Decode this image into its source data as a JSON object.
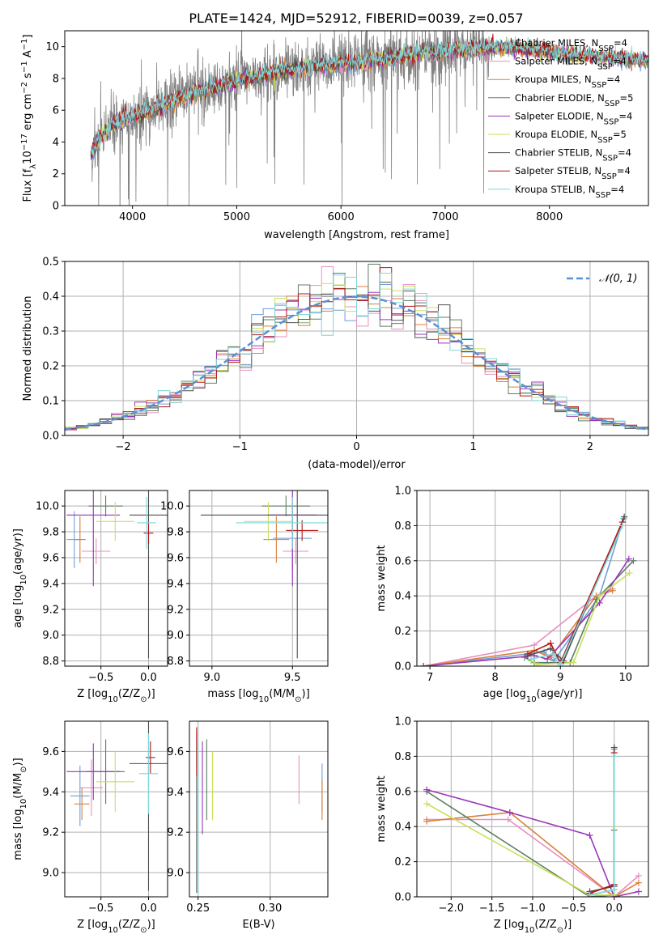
{
  "figure": {
    "title": "PLATE=1424, MJD=52912, FIBERID=0039, z=0.057"
  },
  "colors": {
    "Chabrier MILES": "#6f9fd8",
    "Salpeter MILES": "#e88fc2",
    "Kroupa MILES": "#d8813a",
    "Chabrier ELODIE": "#5f7f62",
    "Salpeter ELODIE": "#9b36b7",
    "Kroupa ELODIE": "#c8e05a",
    "Chabrier STELIB": "#505050",
    "Salpeter STELIB": "#b01818",
    "Kroupa STELIB": "#7fd6d9",
    "data": "#808080",
    "normal": "#5a8fd6"
  },
  "chart_data": [
    {
      "id": "spectrum",
      "type": "line",
      "title": "PLATE=1424, MJD=52912, FIBERID=0039, z=0.057",
      "xlabel": "wavelength [Angstrom, rest frame]",
      "ylabel_parts": [
        "Flux [f",
        "λ",
        "10",
        "−17",
        " erg cm",
        "−2",
        " s",
        "−1",
        " A",
        "−1",
        "]"
      ],
      "xlim": [
        3350,
        8950
      ],
      "ylim": [
        0,
        11
      ],
      "xticks": [
        4000,
        5000,
        6000,
        7000,
        8000
      ],
      "yticks": [
        0,
        2,
        4,
        6,
        8,
        10
      ],
      "continuum_knots": [
        [
          3600,
          3.2
        ],
        [
          3700,
          4.3
        ],
        [
          3800,
          5.0
        ],
        [
          3900,
          5.3
        ],
        [
          4000,
          5.6
        ],
        [
          4200,
          6.0
        ],
        [
          4400,
          6.6
        ],
        [
          4600,
          7.1
        ],
        [
          4800,
          7.4
        ],
        [
          5000,
          7.8
        ],
        [
          5200,
          8.2
        ],
        [
          5400,
          8.4
        ],
        [
          5600,
          8.6
        ],
        [
          5800,
          8.8
        ],
        [
          6000,
          8.9
        ],
        [
          6200,
          9.0
        ],
        [
          6400,
          9.2
        ],
        [
          6600,
          9.4
        ],
        [
          6800,
          9.6
        ],
        [
          7000,
          9.7
        ],
        [
          7200,
          9.8
        ],
        [
          7400,
          9.9
        ],
        [
          7600,
          9.9
        ],
        [
          7800,
          9.8
        ],
        [
          8000,
          9.7
        ],
        [
          8200,
          9.5
        ],
        [
          8400,
          9.4
        ],
        [
          8600,
          9.3
        ],
        [
          8800,
          9.2
        ],
        [
          8950,
          9.1
        ]
      ],
      "model_range": [
        3600,
        8950
      ],
      "data_range": [
        3600,
        7420
      ],
      "legend": [
        {
          "label": "Chabrier MILES, N",
          "sub": "SSP",
          "eq": "=4",
          "color_key": "Chabrier MILES"
        },
        {
          "label": "Salpeter MILES, N",
          "sub": "SSP",
          "eq": "=4",
          "color_key": "Salpeter MILES"
        },
        {
          "label": "Kroupa MILES, N",
          "sub": "SSP",
          "eq": "=4",
          "color_key": "Kroupa MILES"
        },
        {
          "label": "Chabrier ELODIE, N",
          "sub": "SSP",
          "eq": "=5",
          "color_key": "Chabrier ELODIE"
        },
        {
          "label": "Salpeter ELODIE, N",
          "sub": "SSP",
          "eq": "=4",
          "color_key": "Salpeter ELODIE"
        },
        {
          "label": "Kroupa ELODIE, N",
          "sub": "SSP",
          "eq": "=5",
          "color_key": "Kroupa ELODIE"
        },
        {
          "label": "Chabrier STELIB, N",
          "sub": "SSP",
          "eq": "=4",
          "color_key": "Chabrier STELIB"
        },
        {
          "label": "Salpeter STELIB, N",
          "sub": "SSP",
          "eq": "=4",
          "color_key": "Salpeter STELIB"
        },
        {
          "label": "Kroupa STELIB, N",
          "sub": "SSP",
          "eq": "=4",
          "color_key": "Kroupa STELIB"
        }
      ],
      "legend_position": "right"
    },
    {
      "id": "residuals",
      "type": "histogram",
      "xlabel": "(data-model)/error",
      "ylabel": "Normed distribution",
      "xlim": [
        -2.5,
        2.5
      ],
      "ylim": [
        0,
        0.5
      ],
      "xticks": [
        -2,
        -1,
        0,
        1,
        2
      ],
      "yticks": [
        0.0,
        0.1,
        0.2,
        0.3,
        0.4,
        0.5
      ],
      "bin_width": 0.1,
      "legend": {
        "label": "𝒩(0, 1)",
        "position": "top-right"
      }
    },
    {
      "id": "age_vs_Z",
      "type": "scatter",
      "xlabel_parts": [
        "Z [log",
        "10",
        "(Z/Z",
        "⊙",
        ")]"
      ],
      "ylabel_parts": [
        "age  [log",
        "10",
        "(age/yr)]"
      ],
      "xlim": [
        -0.88,
        0.2
      ],
      "ylim": [
        8.76,
        10.12
      ],
      "xticks": [
        -0.5,
        0.0
      ],
      "yticks": [
        8.8,
        9.0,
        9.2,
        9.4,
        9.6,
        9.8,
        10.0
      ],
      "points": [
        {
          "series": "Chabrier MILES",
          "x": -0.78,
          "y": 9.74,
          "xerr": 0.08,
          "yerr": 0.22
        },
        {
          "series": "Salpeter MILES",
          "x": -0.55,
          "y": 9.65,
          "xerr": 0.15,
          "yerr": 0.1
        },
        {
          "series": "Kroupa MILES",
          "x": -0.72,
          "y": 9.74,
          "xerr": 0.06,
          "yerr": 0.18
        },
        {
          "series": "Chabrier ELODIE",
          "x": -0.45,
          "y": 10.0,
          "xerr": 0.18,
          "yerr": 0.08
        },
        {
          "series": "Salpeter ELODIE",
          "x": -0.58,
          "y": 9.93,
          "xerr": 0.28,
          "yerr": 0.55
        },
        {
          "series": "Kroupa ELODIE",
          "x": -0.35,
          "y": 9.88,
          "xerr": 0.2,
          "yerr": 0.15
        },
        {
          "series": "Chabrier STELIB",
          "x": 0.0,
          "y": 9.93,
          "xerr": 0.2,
          "yerr": 1.11
        },
        {
          "series": "Salpeter STELIB",
          "x": 0.0,
          "y": 9.79,
          "xerr": 0.05,
          "yerr": 0.08
        },
        {
          "series": "Kroupa STELIB",
          "x": -0.02,
          "y": 9.87,
          "xerr": 0.1,
          "yerr": 0.2
        }
      ]
    },
    {
      "id": "age_vs_mass",
      "type": "scatter",
      "xlabel_parts": [
        "mass [log",
        "10",
        "(M/M",
        "⊙",
        ")]"
      ],
      "ylabel_parts": [],
      "xlim": [
        8.86,
        9.72
      ],
      "ylim": [
        8.76,
        10.12
      ],
      "xticks": [
        9.0,
        9.5
      ],
      "yticks": [
        8.8,
        9.0,
        9.2,
        9.4,
        9.6,
        9.8,
        10.0
      ],
      "points": [
        {
          "series": "Chabrier MILES",
          "x": 9.5,
          "y": 9.75,
          "xerr": 0.12,
          "yerr": 0.25
        },
        {
          "series": "Salpeter MILES",
          "x": 9.52,
          "y": 9.65,
          "xerr": 0.08,
          "yerr": 0.1
        },
        {
          "series": "Kroupa MILES",
          "x": 9.4,
          "y": 9.74,
          "xerr": 0.08,
          "yerr": 0.18
        },
        {
          "series": "Chabrier ELODIE",
          "x": 9.46,
          "y": 10.0,
          "xerr": 0.15,
          "yerr": 0.08
        },
        {
          "series": "Salpeter ELODIE",
          "x": 9.5,
          "y": 9.93,
          "xerr": 0.15,
          "yerr": 0.55
        },
        {
          "series": "Kroupa ELODIE",
          "x": 9.35,
          "y": 9.88,
          "xerr": 0.15,
          "yerr": 0.15
        },
        {
          "series": "Chabrier STELIB",
          "x": 9.53,
          "y": 9.93,
          "xerr": 0.6,
          "yerr": 1.11
        },
        {
          "series": "Salpeter STELIB",
          "x": 9.56,
          "y": 9.81,
          "xerr": 0.1,
          "yerr": 0.08
        },
        {
          "series": "Kroupa STELIB",
          "x": 9.5,
          "y": 9.87,
          "xerr": 0.35,
          "yerr": 0.2
        }
      ]
    },
    {
      "id": "weight_vs_age",
      "type": "line",
      "xlabel_parts": [
        "age  [log",
        "10",
        "(age/yr)]"
      ],
      "ylabel": "mass weight",
      "xlim": [
        6.8,
        10.35
      ],
      "ylim": [
        0,
        1.0
      ],
      "xticks": [
        7,
        8,
        9,
        10
      ],
      "yticks": [
        0.0,
        0.2,
        0.4,
        0.6,
        0.8,
        1.0
      ],
      "series": [
        {
          "name": "Chabrier MILES",
          "x": [
            6.9,
            8.75,
            8.9,
            9.6,
            9.97
          ],
          "y": [
            0.0,
            0.08,
            0.03,
            0.4,
            0.84
          ]
        },
        {
          "name": "Salpeter MILES",
          "x": [
            6.9,
            8.6,
            9.55,
            9.8
          ],
          "y": [
            0.0,
            0.12,
            0.4,
            0.44
          ]
        },
        {
          "name": "Kroupa MILES",
          "x": [
            6.9,
            8.6,
            8.85,
            9.55,
            9.8
          ],
          "y": [
            0.0,
            0.09,
            0.05,
            0.4,
            0.43
          ]
        },
        {
          "name": "Chabrier ELODIE",
          "x": [
            8.45,
            8.6,
            9.15,
            9.55,
            10.12
          ],
          "y": [
            0.05,
            0.02,
            0.02,
            0.38,
            0.6
          ]
        },
        {
          "name": "Salpeter ELODIE",
          "x": [
            6.9,
            8.6,
            8.8,
            9.6,
            10.05
          ],
          "y": [
            0.0,
            0.06,
            0.04,
            0.36,
            0.61
          ]
        },
        {
          "name": "Kroupa ELODIE",
          "x": [
            8.55,
            8.65,
            9.2,
            9.6,
            10.06
          ],
          "y": [
            0.03,
            0.01,
            0.02,
            0.4,
            0.53
          ]
        },
        {
          "name": "Chabrier STELIB",
          "x": [
            8.5,
            8.85,
            9.05,
            9.98
          ],
          "y": [
            0.06,
            0.1,
            0.03,
            0.85
          ]
        },
        {
          "name": "Salpeter STELIB",
          "x": [
            8.5,
            8.85,
            9.0,
            9.95
          ],
          "y": [
            0.07,
            0.13,
            0.02,
            0.82
          ]
        },
        {
          "name": "Kroupa STELIB",
          "x": [
            8.55,
            8.9,
            9.0,
            9.95
          ],
          "y": [
            0.04,
            0.07,
            0.01,
            0.8
          ]
        }
      ]
    },
    {
      "id": "mass_vs_Z",
      "type": "scatter",
      "xlabel_parts": [
        "Z [log",
        "10",
        "(Z/Z",
        "⊙",
        ")]"
      ],
      "ylabel_parts": [
        "mass [log",
        "10",
        "(M/M",
        "⊙",
        ")]"
      ],
      "xlim": [
        -0.88,
        0.2
      ],
      "ylim": [
        8.88,
        9.75
      ],
      "xticks": [
        -0.5,
        0.0
      ],
      "yticks": [
        9.0,
        9.2,
        9.4,
        9.6
      ],
      "points": [
        {
          "series": "Chabrier MILES",
          "x": -0.72,
          "y": 9.38,
          "xerr": 0.1,
          "yerr": 0.15
        },
        {
          "series": "Salpeter MILES",
          "x": -0.6,
          "y": 9.42,
          "xerr": 0.12,
          "yerr": 0.14
        },
        {
          "series": "Kroupa MILES",
          "x": -0.7,
          "y": 9.34,
          "xerr": 0.08,
          "yerr": 0.08
        },
        {
          "series": "Chabrier ELODIE",
          "x": -0.45,
          "y": 9.5,
          "xerr": 0.2,
          "yerr": 0.16
        },
        {
          "series": "Salpeter ELODIE",
          "x": -0.58,
          "y": 9.5,
          "xerr": 0.28,
          "yerr": 0.14
        },
        {
          "series": "Kroupa ELODIE",
          "x": -0.35,
          "y": 9.45,
          "xerr": 0.2,
          "yerr": 0.15
        },
        {
          "series": "Chabrier STELIB",
          "x": 0.0,
          "y": 9.54,
          "xerr": 0.2,
          "yerr": 0.63
        },
        {
          "series": "Salpeter STELIB",
          "x": 0.02,
          "y": 9.57,
          "xerr": 0.05,
          "yerr": 0.08
        },
        {
          "series": "Kroupa STELIB",
          "x": 0.0,
          "y": 9.49,
          "xerr": 0.1,
          "yerr": 0.2
        }
      ]
    },
    {
      "id": "mass_vs_ebv",
      "type": "scatter",
      "xlabel": "E(B-V)",
      "ylabel_parts": [],
      "xlim": [
        0.244,
        0.34
      ],
      "ylim": [
        8.88,
        9.75
      ],
      "xticks": [
        0.25,
        0.3
      ],
      "yticks": [
        9.0,
        9.2,
        9.4,
        9.6
      ],
      "points": [
        {
          "series": "Chabrier MILES",
          "x": 0.336,
          "y": 9.42,
          "xerr": 0,
          "yerr": 0.12
        },
        {
          "series": "Salpeter MILES",
          "x": 0.32,
          "y": 9.46,
          "xerr": 0,
          "yerr": 0.12
        },
        {
          "series": "Kroupa MILES",
          "x": 0.336,
          "y": 9.36,
          "xerr": 0,
          "yerr": 0.1
        },
        {
          "series": "Chabrier ELODIE",
          "x": 0.256,
          "y": 9.46,
          "xerr": 0,
          "yerr": 0.2
        },
        {
          "series": "Salpeter ELODIE",
          "x": 0.253,
          "y": 9.42,
          "xerr": 0,
          "yerr": 0.23
        },
        {
          "series": "Kroupa ELODIE",
          "x": 0.26,
          "y": 9.43,
          "xerr": 0,
          "yerr": 0.17
        },
        {
          "series": "Chabrier STELIB",
          "x": 0.249,
          "y": 9.3,
          "xerr": 0,
          "yerr": 0.4
        },
        {
          "series": "Salpeter STELIB",
          "x": 0.249,
          "y": 9.6,
          "xerr": 0,
          "yerr": 0.12
        },
        {
          "series": "Kroupa STELIB",
          "x": 0.25,
          "y": 9.27,
          "xerr": 0,
          "yerr": 0.38
        }
      ]
    },
    {
      "id": "weight_vs_Z",
      "type": "line",
      "xlabel_parts": [
        "Z [log",
        "10",
        "(Z/Z",
        "⊙",
        ")]"
      ],
      "ylabel": "mass weight",
      "xlim": [
        -2.42,
        0.42
      ],
      "ylim": [
        0,
        1.0
      ],
      "xticks": [
        -2.0,
        -1.5,
        -1.0,
        -0.5,
        0.0
      ],
      "yticks": [
        0.0,
        0.2,
        0.4,
        0.6,
        0.8,
        1.0
      ],
      "series": [
        {
          "name": "Chabrier MILES",
          "x": [
            -0.3,
            0.0,
            0.0
          ],
          "y": [
            0.01,
            0.04,
            0.84
          ]
        },
        {
          "name": "Salpeter MILES",
          "x": [
            -2.3,
            -1.3,
            0.0,
            0.3
          ],
          "y": [
            0.44,
            0.44,
            0.0,
            0.12
          ]
        },
        {
          "name": "Kroupa MILES",
          "x": [
            -2.3,
            -1.28,
            0.0,
            0.3
          ],
          "y": [
            0.43,
            0.48,
            0.0,
            0.08
          ]
        },
        {
          "name": "Chabrier ELODIE",
          "x": [
            -2.3,
            -0.3,
            0.0,
            0.0
          ],
          "y": [
            0.6,
            0.0,
            0.01,
            0.38
          ]
        },
        {
          "name": "Salpeter ELODIE",
          "x": [
            -2.3,
            -1.28,
            -0.3,
            0.0,
            0.3
          ],
          "y": [
            0.61,
            0.48,
            0.35,
            0.0,
            0.03
          ]
        },
        {
          "name": "Kroupa ELODIE",
          "x": [
            -2.3,
            -0.3,
            0.0,
            0.0
          ],
          "y": [
            0.53,
            0.01,
            0.01,
            0.4
          ]
        },
        {
          "name": "Chabrier STELIB",
          "x": [
            -0.3,
            0.0,
            0.0
          ],
          "y": [
            0.03,
            0.06,
            0.85
          ]
        },
        {
          "name": "Salpeter STELIB",
          "x": [
            -0.3,
            0.0,
            0.0
          ],
          "y": [
            0.02,
            0.07,
            0.82
          ]
        },
        {
          "name": "Kroupa STELIB",
          "x": [
            -0.3,
            0.0,
            0.0
          ],
          "y": [
            0.01,
            0.04,
            0.8
          ]
        }
      ]
    }
  ]
}
